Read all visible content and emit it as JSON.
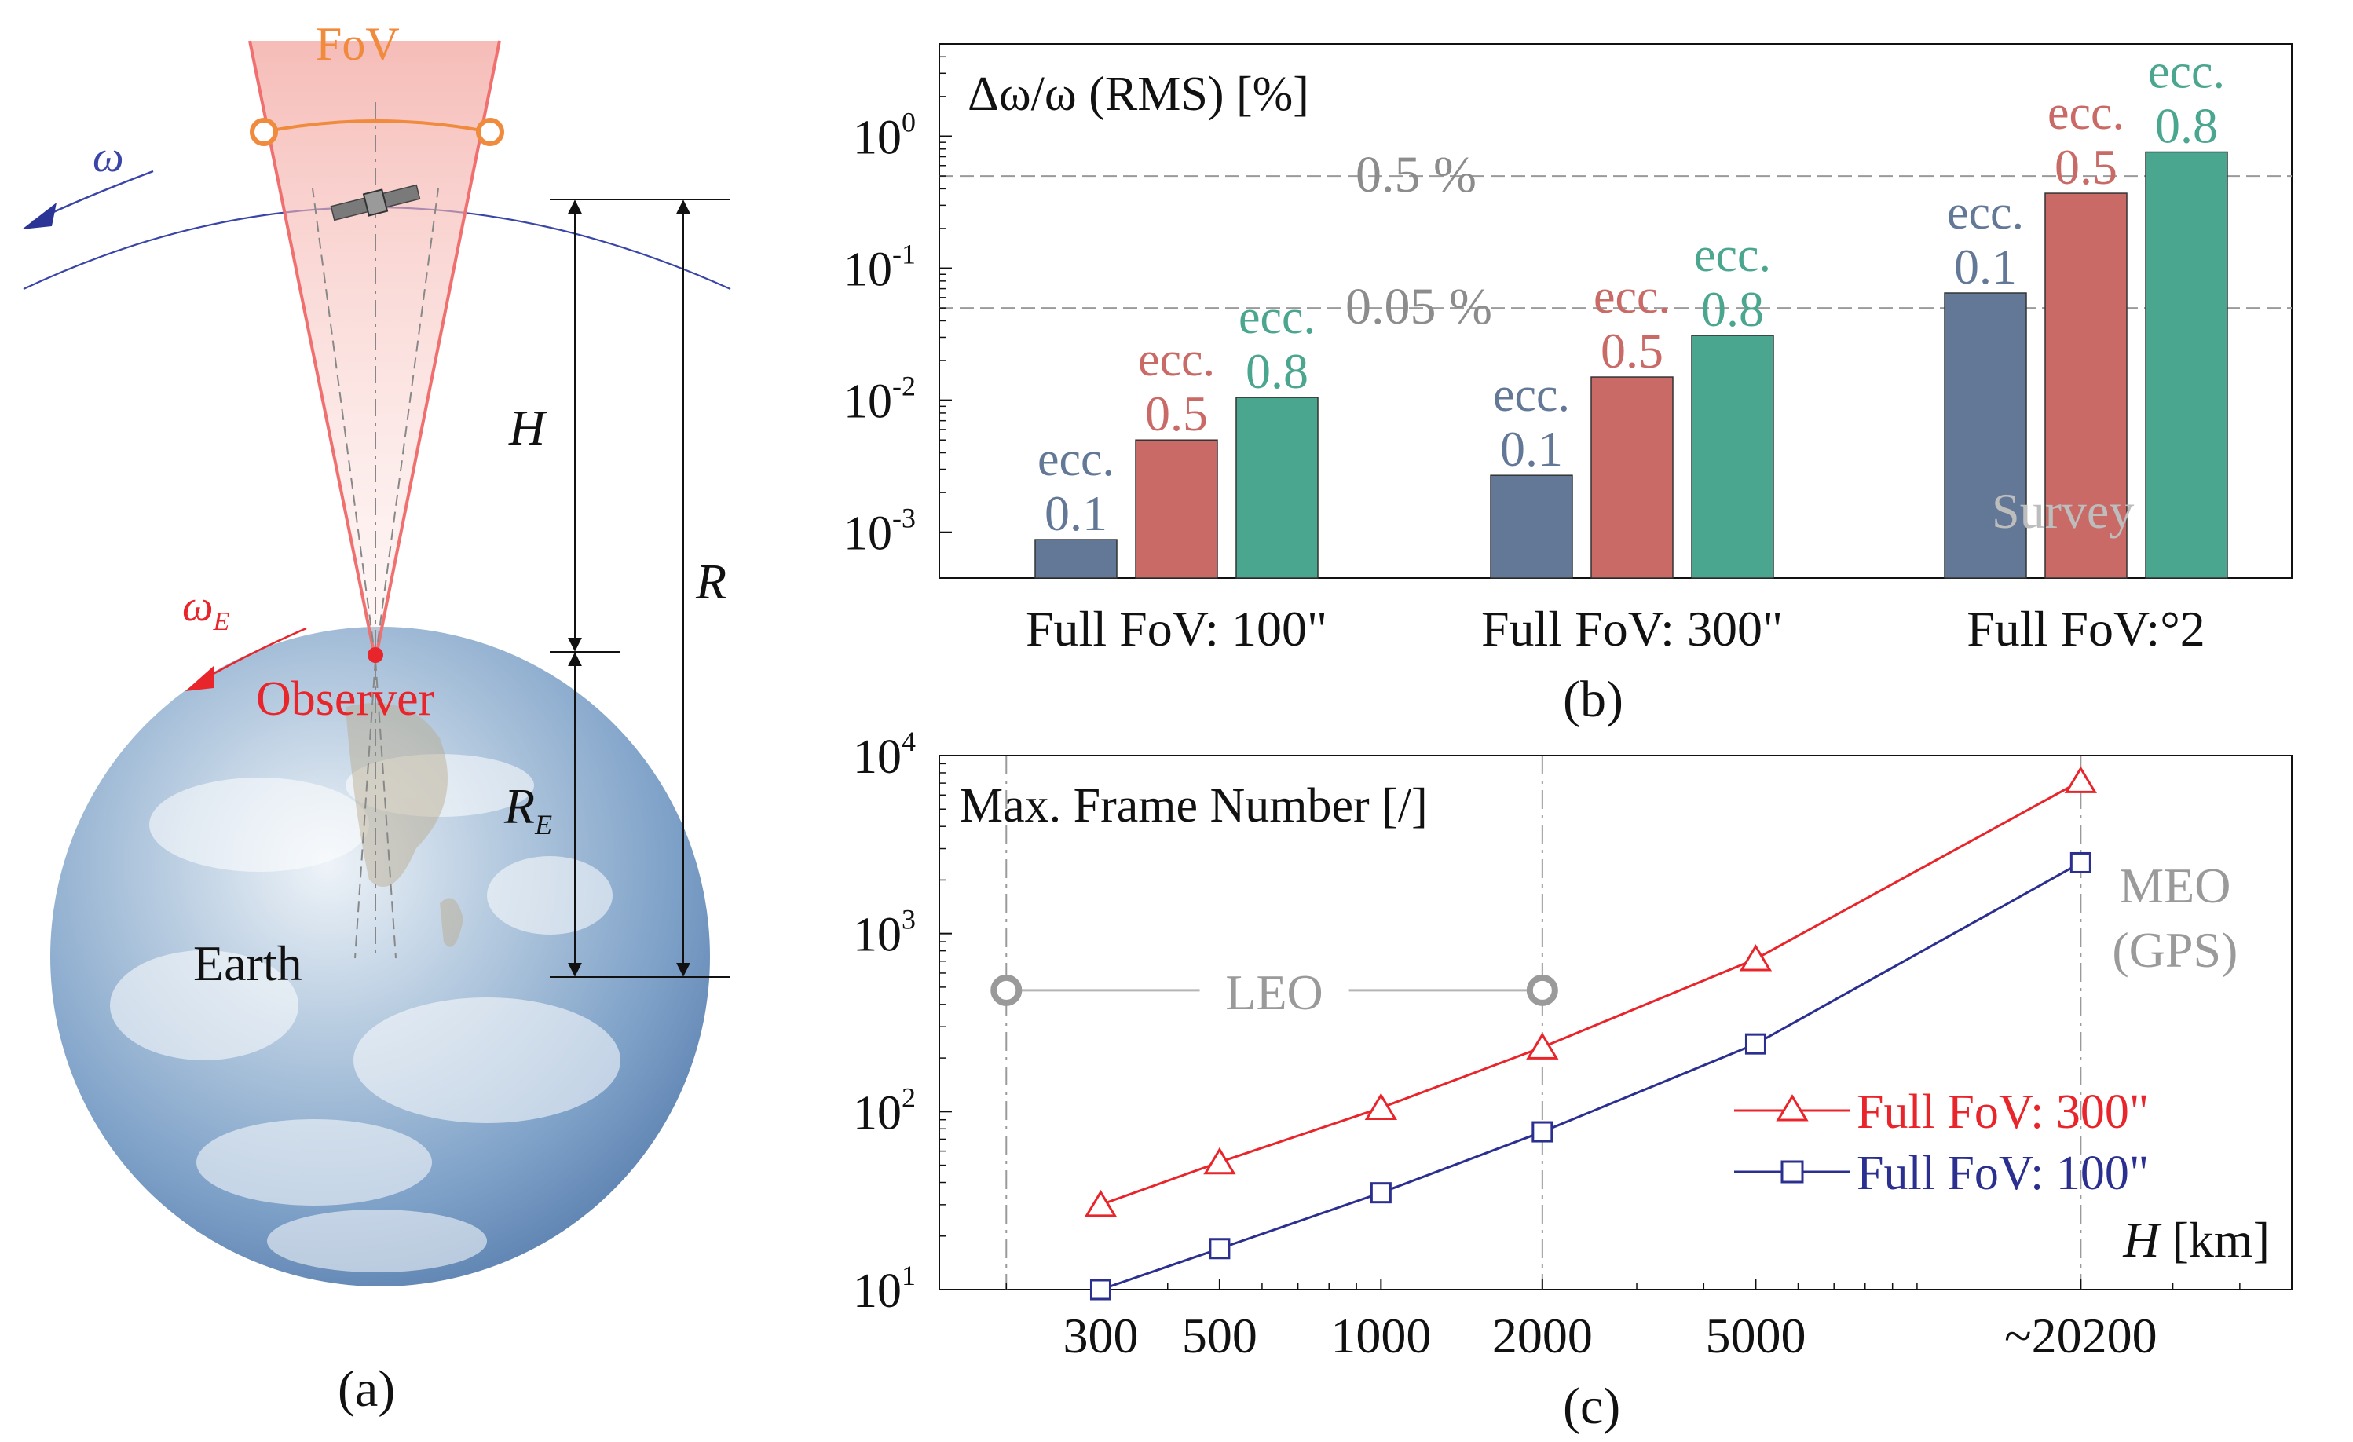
{
  "colors": {
    "series_ecc01": "#627896",
    "series_ecc05": "#c96a66",
    "series_ecc08": "#4aa68e",
    "fov_300": "#e8252b",
    "fov_100": "#2b2f8f",
    "fov_orange": "#f08a3c",
    "observer_red": "#e8252b",
    "orbit_blue": "#3a45a8",
    "annotation_gray": "#8c8c8c",
    "earth_ocean": "#5f86b6"
  },
  "panel_a": {
    "label": "(a)",
    "fov_label": "FoV",
    "omega_label": "ω",
    "omega_e_label": "ω",
    "omega_e_sub": "E",
    "h_label": "H",
    "r_label": "R",
    "re_label": "R",
    "re_sub": "E",
    "observer_label": "Observer",
    "earth_label": "Earth"
  },
  "chart_data": [
    {
      "type": "bar",
      "panel": "(b)",
      "title": "Δω/ω (RMS) [%]",
      "yscale": "log",
      "ylim": [
        0.00045,
        5
      ],
      "yticks": [
        0.001,
        0.01,
        0.1,
        1
      ],
      "ytick_bases": [
        "10",
        "10",
        "10",
        "10"
      ],
      "ytick_exps": [
        "-3",
        "-2",
        "-1",
        "0"
      ],
      "categories": [
        "Full FoV: 100\"",
        "Full FoV: 300\"",
        "Full FoV:°2"
      ],
      "series": [
        {
          "name": "ecc. 0.1",
          "ecc_text": "ecc.",
          "ecc_value": "0.1",
          "values": [
            0.00088,
            0.0027,
            0.065
          ]
        },
        {
          "name": "ecc. 0.5",
          "ecc_text": "ecc.",
          "ecc_value": "0.5",
          "values": [
            0.005,
            0.015,
            0.37
          ]
        },
        {
          "name": "ecc. 0.8",
          "ecc_text": "ecc.",
          "ecc_value": "0.8",
          "values": [
            0.0105,
            0.031,
            0.76
          ]
        }
      ],
      "reference_lines": [
        {
          "value": 0.5,
          "label": "0.5 %"
        },
        {
          "value": 0.05,
          "label": "0.05 %"
        }
      ],
      "annotation": "Survey"
    },
    {
      "type": "line",
      "panel": "(c)",
      "title": "Max. Frame Number [/]",
      "xlabel_italic": "H",
      "xlabel_unit": " [km]",
      "xscale": "log",
      "yscale": "log",
      "xlim": [
        150,
        50000
      ],
      "ylim": [
        10,
        10000
      ],
      "x": [
        300,
        500,
        1000,
        2000,
        5000,
        20200
      ],
      "xtick_labels": [
        "300",
        "500",
        "1000",
        "2000",
        "5000",
        "~20200"
      ],
      "yticks": [
        10,
        100,
        1000,
        10000
      ],
      "ytick_bases": [
        "10",
        "10",
        "10",
        "10"
      ],
      "ytick_exps": [
        "1",
        "2",
        "3",
        "4"
      ],
      "series": [
        {
          "name": "Full FoV: 300\"",
          "marker": "triangle",
          "values": [
            30,
            52,
            105,
            230,
            720,
            7200
          ]
        },
        {
          "name": "Full FoV: 100\"",
          "marker": "square",
          "values": [
            10,
            17,
            35,
            77,
            240,
            2500
          ]
        }
      ],
      "leo_label": "LEO",
      "leo_range": [
        200,
        2000
      ],
      "leo_marker_y": 480,
      "meo_label_1": "MEO",
      "meo_label_2": "(GPS)",
      "meo_x": 20200
    }
  ]
}
